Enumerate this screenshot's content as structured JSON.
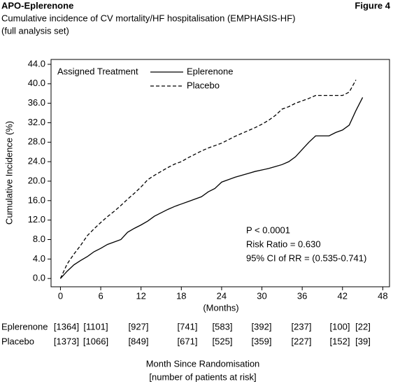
{
  "header": {
    "title": "APO-Eplerenone",
    "figure": "Figure 4",
    "subtitle": [
      "Cumulative incidence of CV mortality/HF hospitalisation (EMPHASIS-HF)",
      "(full analysis set)"
    ]
  },
  "chart_data": {
    "type": "line",
    "xlabel": "(Months)",
    "ylabel": "Cumulative Incidence (%)",
    "legend_title": "Assigned Treatment",
    "x": [
      0,
      1,
      2,
      3,
      4,
      5,
      6,
      7,
      8,
      9,
      10,
      11,
      12,
      13,
      14,
      15,
      16,
      17,
      18,
      19,
      20,
      21,
      22,
      23,
      24,
      25,
      26,
      27,
      28,
      29,
      30,
      31,
      32,
      33,
      34,
      35,
      36,
      37,
      38,
      39,
      40,
      41,
      42,
      43,
      44,
      45
    ],
    "series": [
      {
        "name": "Eplerenone",
        "color": "#000000",
        "dash": "solid",
        "values": [
          0,
          1.5,
          2.8,
          3.7,
          4.5,
          5.5,
          6.2,
          7.0,
          7.5,
          8.0,
          9.5,
          10.3,
          11.0,
          11.8,
          12.8,
          13.5,
          14.2,
          14.8,
          15.3,
          15.8,
          16.3,
          16.8,
          17.8,
          18.5,
          19.8,
          20.3,
          20.8,
          21.2,
          21.6,
          22.0,
          22.3,
          22.6,
          23.0,
          23.4,
          24.0,
          25.0,
          26.5,
          28.0,
          29.3,
          29.3,
          29.3,
          30.0,
          30.5,
          31.5,
          34.5,
          37.2
        ]
      },
      {
        "name": "Placebo",
        "color": "#000000",
        "dash": "dashed",
        "values": [
          0,
          3.0,
          5.0,
          6.8,
          8.8,
          10.2,
          11.5,
          12.7,
          13.8,
          15.0,
          16.3,
          17.5,
          18.8,
          20.3,
          21.2,
          22.0,
          22.8,
          23.5,
          24.0,
          24.8,
          25.5,
          26.2,
          26.8,
          27.3,
          27.8,
          28.5,
          29.2,
          29.8,
          30.4,
          31.0,
          31.7,
          32.5,
          33.5,
          34.8,
          35.3,
          36.0,
          36.5,
          37.0,
          37.6,
          37.6,
          37.6,
          37.6,
          37.6,
          38.3,
          40.8,
          null
        ]
      }
    ],
    "xlim": [
      -1.4,
      49
    ],
    "ylim": [
      -1.7,
      45
    ],
    "xticks": [
      0,
      6,
      12,
      18,
      24,
      30,
      36,
      42,
      48
    ],
    "yticks": [
      {
        "value": 0,
        "label": "0.0"
      },
      {
        "value": 4,
        "label": "4.0"
      },
      {
        "value": 8,
        "label": "8.0"
      },
      {
        "value": 12,
        "label": "12.0"
      },
      {
        "value": 16,
        "label": "16.0"
      },
      {
        "value": 20,
        "label": "20.0"
      },
      {
        "value": 24,
        "label": "24.0"
      },
      {
        "value": 28,
        "label": "28.0"
      },
      {
        "value": 32,
        "label": "32.0"
      },
      {
        "value": 36,
        "label": "36.0"
      },
      {
        "value": 40,
        "label": "40.0"
      },
      {
        "value": 44,
        "label": "44.0"
      }
    ],
    "annotations": [
      "P < 0.0001",
      "Risk Ratio = 0.630",
      "95% CI of RR = (0.535-0.741)"
    ],
    "risk_table": {
      "rows": [
        {
          "label": "Eplerenone",
          "cells": [
            "[1364]",
            "[1101]",
            "[927]",
            "[741]",
            "[583]",
            "[392]",
            "[237]",
            "[100]",
            "[22]"
          ]
        },
        {
          "label": "Placebo",
          "cells": [
            "[1373]",
            "[1066]",
            "[849]",
            "[671]",
            "[525]",
            "[359]",
            "[227]",
            "[152]",
            "[39]"
          ]
        }
      ],
      "title": [
        "Month Since Randomisation",
        "[number of patients at risk]"
      ]
    }
  }
}
